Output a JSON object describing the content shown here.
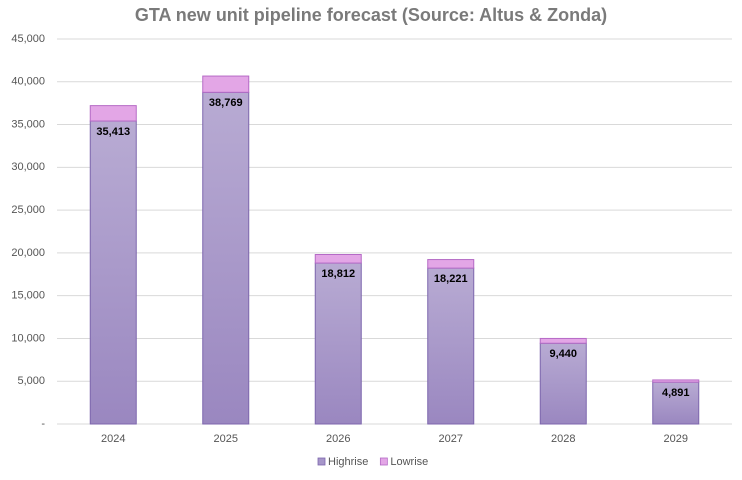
{
  "chart_data": {
    "type": "stacked-bar",
    "title": "GTA new unit pipeline forecast (Source: Altus & Zonda)",
    "categories": [
      "2024",
      "2025",
      "2026",
      "2027",
      "2028",
      "2029"
    ],
    "series": [
      {
        "name": "Highrise",
        "color": "#a696c9",
        "values": [
          35413,
          38769,
          18812,
          18221,
          9440,
          4891
        ],
        "value_labels": [
          "35,413",
          "38,769",
          "18,812",
          "18,221",
          "9,440",
          "4,891"
        ]
      },
      {
        "name": "Lowrise",
        "color": "#e3a6e6",
        "values": [
          1800,
          1900,
          1000,
          1000,
          560,
          260
        ]
      }
    ],
    "ylim": [
      0,
      45000
    ],
    "yticks": [
      {
        "value": 0,
        "label": "-"
      },
      {
        "value": 5000,
        "label": "5,000"
      },
      {
        "value": 10000,
        "label": "10,000"
      },
      {
        "value": 15000,
        "label": "15,000"
      },
      {
        "value": 20000,
        "label": "20,000"
      },
      {
        "value": 25000,
        "label": "25,000"
      },
      {
        "value": 30000,
        "label": "30,000"
      },
      {
        "value": 35000,
        "label": "35,000"
      },
      {
        "value": 40000,
        "label": "40,000"
      },
      {
        "value": 45000,
        "label": "45,000"
      }
    ],
    "grid": true,
    "legend": "bottom"
  }
}
